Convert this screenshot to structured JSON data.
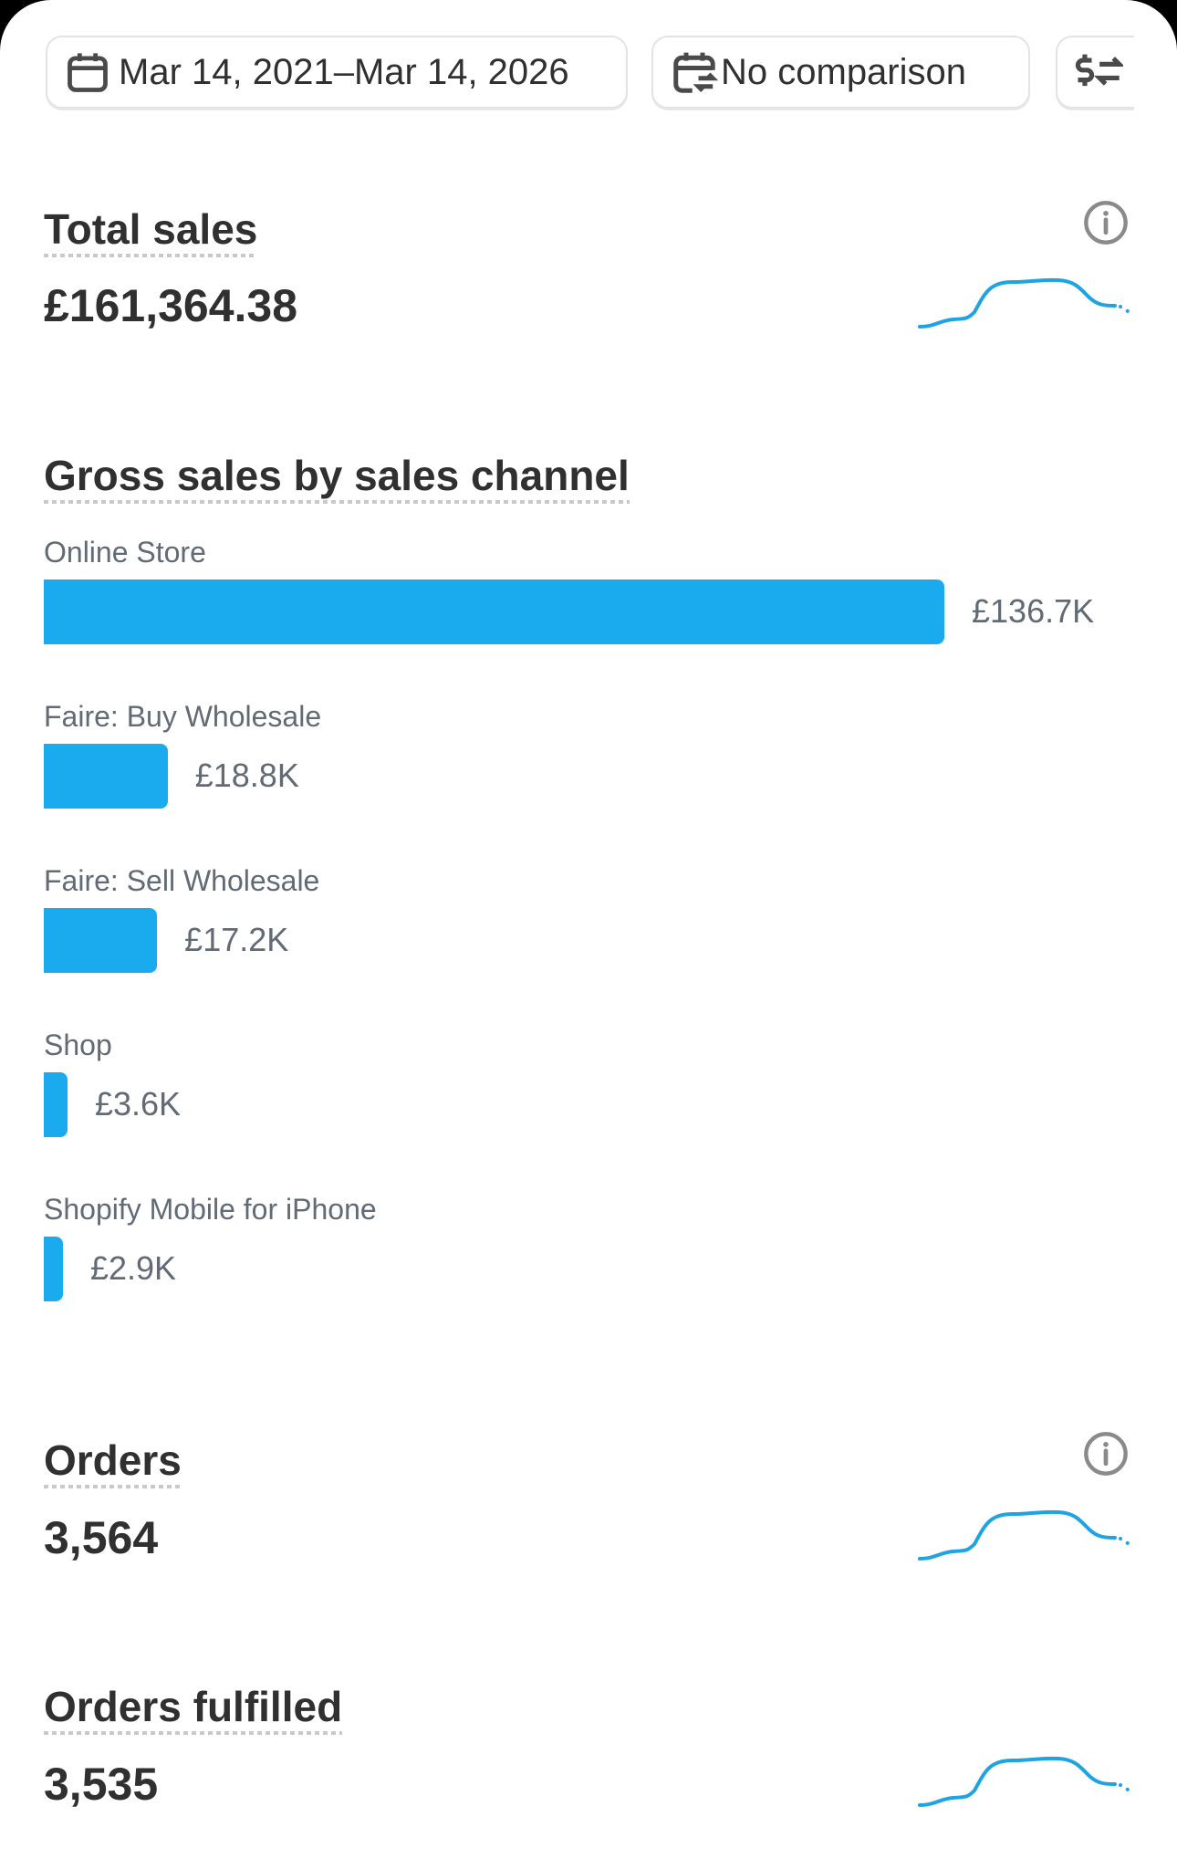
{
  "filters": {
    "date_range": "Mar 14, 2021–Mar 14, 2026",
    "comparison": "No comparison",
    "currency_icon": "currency-exchange-icon"
  },
  "total_sales": {
    "title": "Total sales",
    "value": "£161,364.38"
  },
  "gross_sales": {
    "title": "Gross sales by sales channel"
  },
  "orders": {
    "title": "Orders",
    "value": "3,564"
  },
  "orders_fulfilled": {
    "title": "Orders fulfilled",
    "value": "3,535"
  },
  "colors": {
    "accent": "#1aabef",
    "text": "#303030",
    "muted": "#616a75"
  },
  "chart_data": {
    "type": "bar",
    "orientation": "horizontal",
    "title": "Gross sales by sales channel",
    "categories": [
      "Online Store",
      "Faire: Buy Wholesale",
      "Faire: Sell Wholesale",
      "Shop",
      "Shopify Mobile for iPhone"
    ],
    "values": [
      136700,
      18800,
      17200,
      3600,
      2900
    ],
    "labels": [
      "£136.7K",
      "£18.8K",
      "£17.2K",
      "£3.6K",
      "£2.9K"
    ]
  }
}
